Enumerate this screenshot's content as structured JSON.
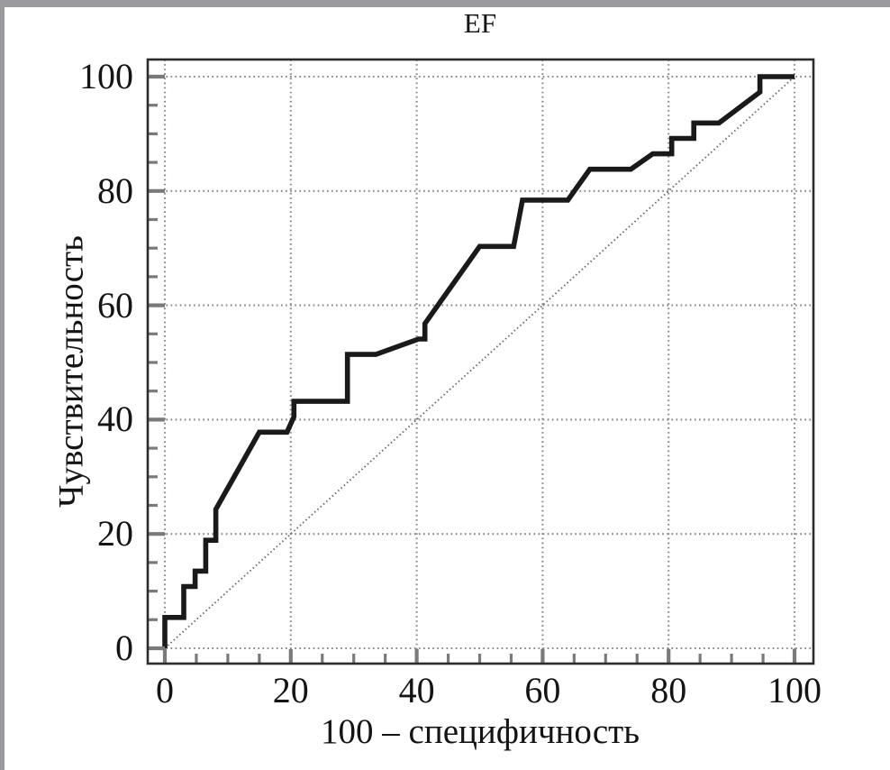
{
  "window": {
    "background": "#ffffff",
    "top_border_color": "#9b9b9f",
    "left_border_color": "#9b9b9f"
  },
  "chart_data": {
    "type": "line",
    "subtype": "ROC curve",
    "title": "EF",
    "xlabel": "100 – специфичность",
    "ylabel": "Чувствительность",
    "xlim": [
      0,
      100
    ],
    "ylim": [
      0,
      100
    ],
    "x_major_ticks": [
      0,
      20,
      40,
      60,
      80,
      100
    ],
    "y_major_ticks": [
      0,
      20,
      40,
      60,
      80,
      100
    ],
    "minor_tick_step": 5,
    "grid": "dotted lines at major ticks",
    "legend": "none",
    "colors": {
      "curve": "#1a1a1a",
      "diagonal": "#6b6b6b",
      "gridline": "#8a8a8a",
      "frame": "#2c2c2c",
      "tick": "#7a7a7a",
      "text": "#141414"
    },
    "series": [
      {
        "name": "ROC curve (EF)",
        "style": "solid",
        "color": "#1a1a1a",
        "points": [
          [
            0,
            0
          ],
          [
            0,
            5.4
          ],
          [
            3,
            5.4
          ],
          [
            3,
            10.8
          ],
          [
            4.8,
            10.8
          ],
          [
            4.8,
            13.5
          ],
          [
            6.5,
            13.5
          ],
          [
            6.5,
            18.9
          ],
          [
            8.1,
            18.9
          ],
          [
            8.1,
            24.3
          ],
          [
            15,
            37.8
          ],
          [
            19.4,
            37.8
          ],
          [
            20.5,
            40.5
          ],
          [
            20.5,
            43.2
          ],
          [
            29,
            43.2
          ],
          [
            29,
            51.4
          ],
          [
            33.5,
            51.4
          ],
          [
            40.3,
            54.1
          ],
          [
            41.3,
            54.1
          ],
          [
            41.3,
            56.8
          ],
          [
            50,
            70.3
          ],
          [
            55.4,
            70.3
          ],
          [
            56.8,
            78.4
          ],
          [
            64,
            78.4
          ],
          [
            67.5,
            83.8
          ],
          [
            74,
            83.8
          ],
          [
            77.5,
            86.5
          ],
          [
            80.5,
            86.5
          ],
          [
            80.5,
            89.2
          ],
          [
            84,
            89.2
          ],
          [
            84,
            91.9
          ],
          [
            88,
            91.9
          ],
          [
            94.5,
            97.3
          ],
          [
            94.5,
            100
          ],
          [
            100,
            100
          ]
        ]
      },
      {
        "name": "reference diagonal",
        "style": "dotted",
        "color": "#6b6b6b",
        "points": [
          [
            0,
            0
          ],
          [
            100,
            100
          ]
        ]
      }
    ]
  }
}
